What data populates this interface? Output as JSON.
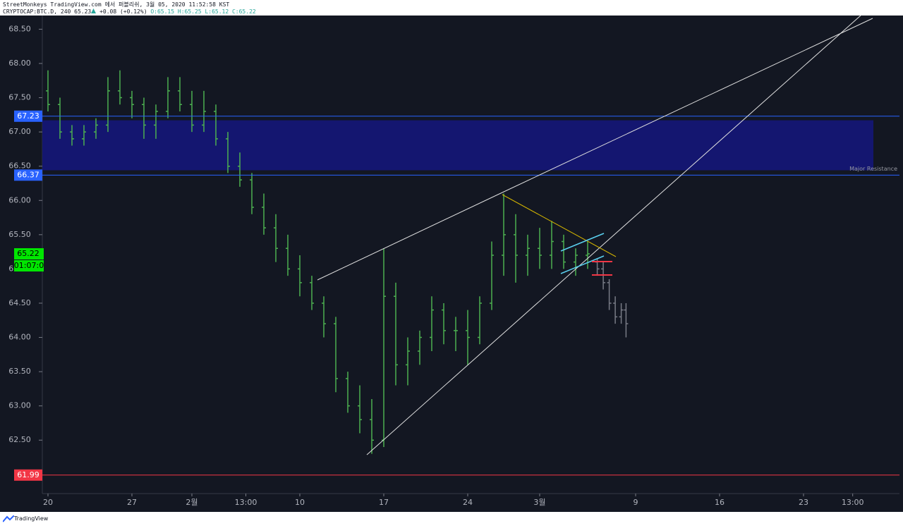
{
  "chart_data": {
    "type": "ohlc",
    "header": {
      "line1": "StreetMonkeys TradingView.com 에서 퍼블리쉬, 3월 05, 2020 11:52:58 KST",
      "symbol": "CRYPTOCAP:BTC.D, 240",
      "last": "65.23",
      "change": "+0.08 (+0.12%)",
      "ohlc": [
        "O:65.15",
        "H:65.25",
        "L:65.12",
        "C:65.22"
      ]
    },
    "ylim": [
      61.72,
      68.7
    ],
    "yticks": [
      {
        "value": 62.5,
        "label": "62.50"
      },
      {
        "value": 63,
        "label": "63.00"
      },
      {
        "value": 63.5,
        "label": "63.50"
      },
      {
        "value": 64,
        "label": "64.00"
      },
      {
        "value": 64.5,
        "label": "64.50"
      },
      {
        "value": 65,
        "label": "65.00"
      },
      {
        "value": 65.5,
        "label": "65.50"
      },
      {
        "value": 66,
        "label": "66.00"
      },
      {
        "value": 66.5,
        "label": "66.50"
      },
      {
        "value": 67,
        "label": "67.00"
      },
      {
        "value": 67.5,
        "label": "67.50"
      },
      {
        "value": 68,
        "label": "68.00"
      },
      {
        "value": 68.5,
        "label": "68.50"
      }
    ],
    "xlim": [
      -0.47,
      71
    ],
    "xticks": [
      {
        "value": 0,
        "label": "20"
      },
      {
        "value": 7,
        "label": "27"
      },
      {
        "value": 12,
        "label": "2월"
      },
      {
        "value": 16.5,
        "label": "13:00"
      },
      {
        "value": 21,
        "label": "10"
      },
      {
        "value": 28,
        "label": "17"
      },
      {
        "value": 35,
        "label": "24"
      },
      {
        "value": 41,
        "label": "3월"
      },
      {
        "value": 49,
        "label": "9"
      },
      {
        "value": 56,
        "label": "16"
      },
      {
        "value": 63,
        "label": "23"
      },
      {
        "value": 67.1,
        "label": "13:00"
      }
    ],
    "series": [
      {
        "color": "#4caf50",
        "x": [
          0,
          1,
          2,
          3,
          4,
          5,
          6,
          7,
          8,
          9,
          10,
          11,
          12,
          13,
          14,
          15,
          16,
          17,
          18,
          19,
          20,
          21,
          22,
          23,
          24,
          25,
          26,
          27,
          28,
          29,
          30,
          31,
          32,
          33,
          34,
          35,
          36,
          37,
          38,
          39,
          40,
          41,
          42,
          43,
          44,
          45
        ],
        "open": [
          67.6,
          67.4,
          67.0,
          66.9,
          67.0,
          67.1,
          67.6,
          67.5,
          67.4,
          67.1,
          67.3,
          67.6,
          67.4,
          67.1,
          67.3,
          66.9,
          66.5,
          66.3,
          65.9,
          65.6,
          65.3,
          65.0,
          64.8,
          64.5,
          64.2,
          63.4,
          63.0,
          62.8,
          62.5,
          64.6,
          63.6,
          63.8,
          64.0,
          64.4,
          64.1,
          64.1,
          64.0,
          64.5,
          65.2,
          65.5,
          65.2,
          65.3,
          65.2,
          65.4,
          65.1,
          65.2
        ],
        "high": [
          67.9,
          67.5,
          67.1,
          67.1,
          67.2,
          67.8,
          67.9,
          67.6,
          67.5,
          67.4,
          67.8,
          67.8,
          67.6,
          67.6,
          67.4,
          67.0,
          66.7,
          66.4,
          66.1,
          65.8,
          65.5,
          65.2,
          64.9,
          64.6,
          64.3,
          63.5,
          63.3,
          63.1,
          65.3,
          64.8,
          64.0,
          64.1,
          64.6,
          64.5,
          64.3,
          64.4,
          64.6,
          65.4,
          66.1,
          65.8,
          65.5,
          65.6,
          65.7,
          65.5,
          65.3,
          65.4
        ],
        "low": [
          67.3,
          66.9,
          66.8,
          66.8,
          66.9,
          67.0,
          67.4,
          67.2,
          66.9,
          66.9,
          67.2,
          67.3,
          67.0,
          67.0,
          66.8,
          66.4,
          66.2,
          65.8,
          65.5,
          65.1,
          64.9,
          64.6,
          64.4,
          64.0,
          63.2,
          62.9,
          62.6,
          62.3,
          62.4,
          63.3,
          63.3,
          63.6,
          63.8,
          63.9,
          63.8,
          63.6,
          63.9,
          64.4,
          64.9,
          64.8,
          64.9,
          65.0,
          65.0,
          65.0,
          64.9,
          65.0
        ],
        "close": [
          67.4,
          67.0,
          66.9,
          67.0,
          67.1,
          67.6,
          67.5,
          67.4,
          67.1,
          67.3,
          67.6,
          67.4,
          67.1,
          67.3,
          66.9,
          66.5,
          66.3,
          65.9,
          65.6,
          65.3,
          65.0,
          64.8,
          64.5,
          64.2,
          63.4,
          63.0,
          62.8,
          62.5,
          64.6,
          63.6,
          63.8,
          64.0,
          64.4,
          64.1,
          64.1,
          64.0,
          64.5,
          65.2,
          65.5,
          65.2,
          65.3,
          65.2,
          65.4,
          65.1,
          65.2,
          65.22
        ]
      },
      {
        "color": "#787b86",
        "x": [
          45.8,
          46.3,
          46.8,
          47.3,
          47.8,
          48.2
        ],
        "open": [
          65.1,
          65.0,
          64.8,
          64.5,
          64.3,
          64.4
        ],
        "high": [
          65.15,
          65.1,
          64.85,
          64.6,
          64.5,
          64.5
        ],
        "low": [
          64.9,
          64.7,
          64.4,
          64.2,
          64.2,
          64.0
        ],
        "close": [
          65.0,
          64.8,
          64.5,
          64.3,
          64.4,
          64.2
        ]
      }
    ],
    "levels": [
      {
        "value": 67.23,
        "color": "#2962ff"
      },
      {
        "value": 66.37,
        "color": "#2962ff"
      },
      {
        "value": 61.99,
        "color": "#f23645"
      }
    ],
    "zone": {
      "top": 67.17,
      "bottom": 66.44,
      "color": "#141670",
      "label": "Major Resistance"
    },
    "last_price": {
      "value": 65.22,
      "color": "#00e600"
    },
    "countdown": "01:07:0",
    "footer": "TradingView"
  }
}
